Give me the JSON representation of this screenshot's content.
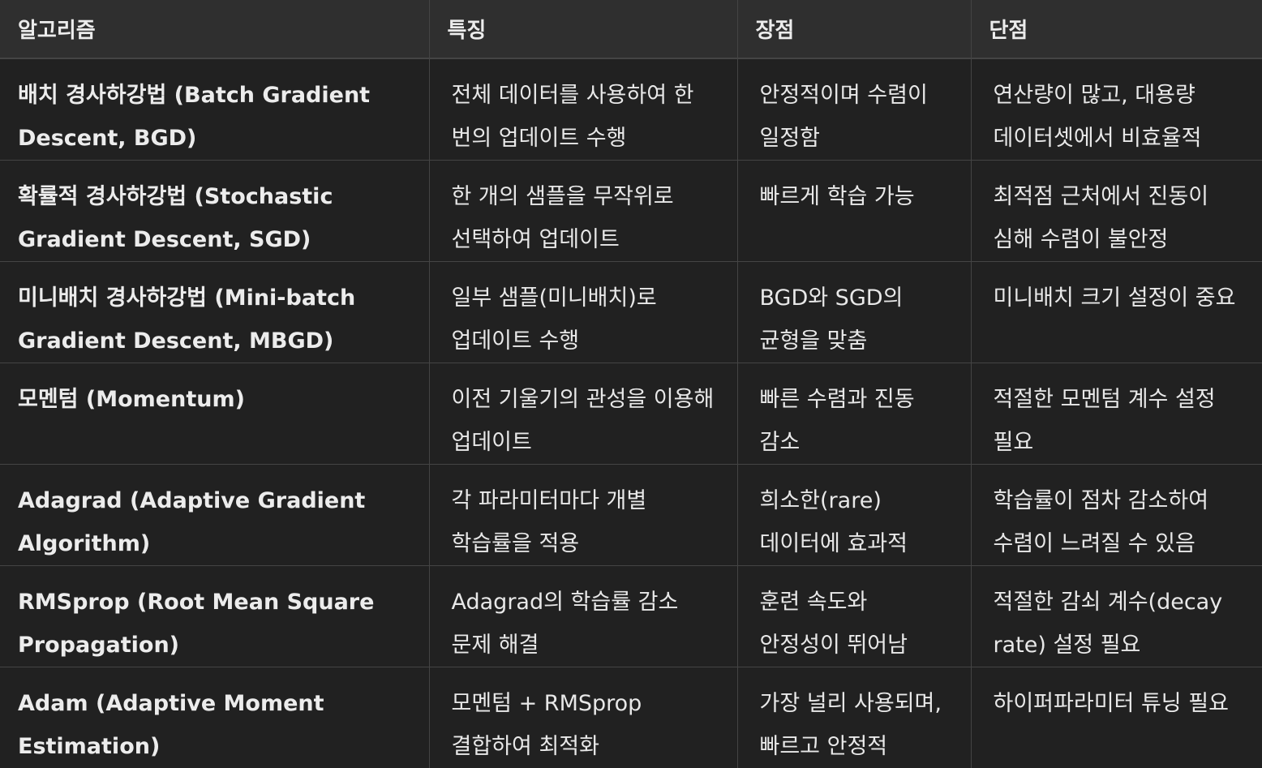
{
  "headers": [
    "알고리즘",
    "특징",
    "장점",
    "단점"
  ],
  "rows": [
    {
      "algorithm": "배치 경사하강법 (Batch Gradient Descent, BGD)",
      "feature": "전체 데이터를 사용하여 한 번의 업데이트 수행",
      "pros": "안정적이며 수렴이 일정함",
      "cons": "연산량이 많고, 대용량 데이터셋에서 비효율적"
    },
    {
      "algorithm": "확률적 경사하강법 (Stochastic Gradient Descent, SGD)",
      "feature": "한 개의 샘플을 무작위로 선택하여 업데이트",
      "pros": "빠르게 학습 가능",
      "cons": "최적점 근처에서 진동이 심해 수렴이 불안정"
    },
    {
      "algorithm": "미니배치 경사하강법 (Mini-batch Gradient Descent, MBGD)",
      "feature": "일부 샘플(미니배치)로 업데이트 수행",
      "pros": "BGD와 SGD의 균형을 맞춤",
      "cons": "미니배치 크기 설정이 중요"
    },
    {
      "algorithm": "모멘텀 (Momentum)",
      "feature": "이전 기울기의 관성을 이용해 업데이트",
      "pros": "빠른 수렴과 진동 감소",
      "cons": "적절한 모멘텀 계수 설정 필요"
    },
    {
      "algorithm": "Adagrad (Adaptive Gradient Algorithm)",
      "feature": "각 파라미터마다 개별 학습률을 적용",
      "pros": "희소한(rare) 데이터에 효과적",
      "cons": "학습률이 점차 감소하여 수렴이 느려질 수 있음"
    },
    {
      "algorithm": "RMSprop (Root Mean Square Propagation)",
      "feature": "Adagrad의 학습률 감소 문제 해결",
      "pros": "훈련 속도와 안정성이 뛰어남",
      "cons": "적절한 감쇠 계수(decay rate) 설정 필요"
    },
    {
      "algorithm": "Adam (Adaptive Moment Estimation)",
      "feature": "모멘텀 + RMSprop 결합하여 최적화",
      "pros": "가장 널리 사용되며, 빠르고 안정적",
      "cons": "하이퍼파라미터 튜닝 필요"
    }
  ]
}
